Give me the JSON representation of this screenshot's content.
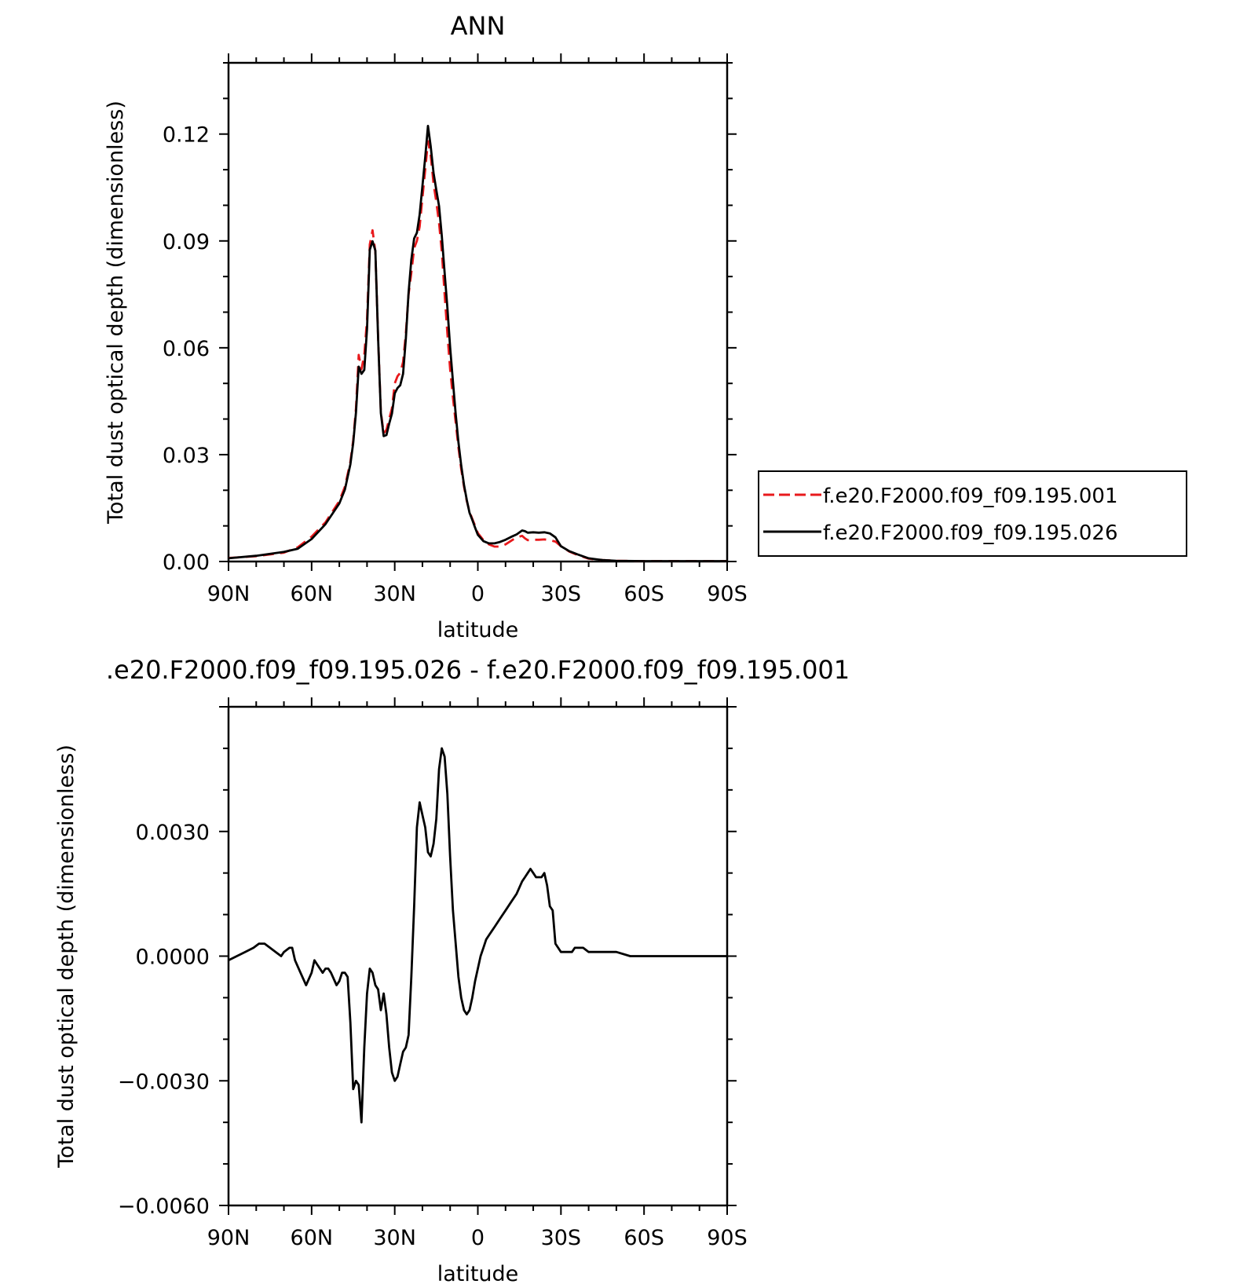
{
  "chart_data": [
    {
      "type": "line",
      "title": "ANN",
      "xlabel": "latitude",
      "ylabel": "Total dust optical depth (dimensionless)",
      "xlim": [
        90,
        -90
      ],
      "ylim": [
        0,
        0.14
      ],
      "x_axis_note": "latitude, positive = N, negative = S",
      "xticks": [
        90,
        60,
        30,
        0,
        -30,
        -60,
        -90
      ],
      "xtick_labels": [
        "90N",
        "60N",
        "30N",
        "0",
        "30S",
        "60S",
        "90S"
      ],
      "yticks": [
        0,
        0.03,
        0.06,
        0.09,
        0.12
      ],
      "ytick_labels": [
        "0.00",
        "0.03",
        "0.06",
        "0.09",
        "0.12"
      ],
      "legend": {
        "placement": "right"
      },
      "series": [
        {
          "name": "f.e20.F2000.f09_f09.195.001",
          "color": "#e8191c",
          "style": "dashed",
          "x": [
            90,
            80,
            70,
            65,
            60,
            55,
            50,
            48,
            46,
            45,
            44,
            43,
            42,
            41,
            40,
            39,
            38,
            37,
            36,
            35,
            34,
            33,
            32,
            31,
            30,
            29,
            28,
            27,
            26,
            25,
            24,
            23,
            22,
            21,
            20,
            19,
            18,
            17,
            16,
            15,
            14,
            13,
            12,
            11,
            10,
            9,
            8,
            7,
            6,
            5,
            4,
            3,
            2,
            1,
            0,
            -2,
            -4,
            -6,
            -8,
            -10,
            -12,
            -14,
            -16,
            -17,
            -18,
            -20,
            -22,
            -24,
            -26,
            -28,
            -30,
            -33,
            -36,
            -40,
            -45,
            -50,
            -60,
            -70,
            -80,
            -90
          ],
          "y": [
            0.001,
            0.0015,
            0.0025,
            0.004,
            0.007,
            0.011,
            0.017,
            0.021,
            0.028,
            0.034,
            0.043,
            0.058,
            0.054,
            0.058,
            0.068,
            0.089,
            0.093,
            0.087,
            0.063,
            0.042,
            0.036,
            0.037,
            0.04,
            0.043,
            0.05,
            0.052,
            0.053,
            0.056,
            0.064,
            0.075,
            0.081,
            0.088,
            0.09,
            0.094,
            0.102,
            0.11,
            0.118,
            0.114,
            0.106,
            0.101,
            0.095,
            0.087,
            0.075,
            0.064,
            0.054,
            0.046,
            0.039,
            0.032,
            0.026,
            0.021,
            0.017,
            0.014,
            0.012,
            0.01,
            0.008,
            0.006,
            0.0048,
            0.0042,
            0.0042,
            0.0048,
            0.0058,
            0.0068,
            0.0072,
            0.0065,
            0.006,
            0.0061,
            0.0061,
            0.0062,
            0.006,
            0.0056,
            0.0043,
            0.0028,
            0.0018,
            0.0008,
            0.0004,
            0.0002,
            0.0001,
            0.0001,
            0.0001,
            0.0001
          ]
        },
        {
          "name": "f.e20.F2000.f09_f09.195.026",
          "color": "#000000",
          "style": "solid",
          "x": [
            90,
            80,
            70,
            65,
            60,
            55,
            50,
            48,
            46,
            45,
            44,
            43,
            42,
            41,
            40,
            39,
            38,
            37,
            36,
            35,
            34,
            33,
            32,
            31,
            30,
            29,
            28,
            27,
            26,
            25,
            24,
            23,
            22,
            21,
            20,
            19,
            18,
            17,
            16,
            15,
            14,
            13,
            12,
            11,
            10,
            9,
            8,
            7,
            6,
            5,
            4,
            3,
            2,
            1,
            0,
            -2,
            -4,
            -6,
            -8,
            -10,
            -12,
            -14,
            -16,
            -17,
            -18,
            -20,
            -22,
            -24,
            -26,
            -28,
            -30,
            -33,
            -36,
            -40,
            -45,
            -50,
            -60,
            -70,
            -80,
            -90
          ],
          "y": [
            0.0009,
            0.0016,
            0.0027,
            0.0036,
            0.0063,
            0.0105,
            0.0163,
            0.0202,
            0.0273,
            0.0333,
            0.0418,
            0.0547,
            0.0527,
            0.0538,
            0.0653,
            0.0875,
            0.0899,
            0.0873,
            0.0627,
            0.0417,
            0.0352,
            0.0355,
            0.0387,
            0.0415,
            0.0472,
            0.0487,
            0.0495,
            0.0527,
            0.0625,
            0.0755,
            0.0847,
            0.0907,
            0.0923,
            0.0974,
            0.1053,
            0.1135,
            0.1223,
            0.1165,
            0.1091,
            0.1043,
            0.0998,
            0.0914,
            0.0811,
            0.0713,
            0.0602,
            0.0505,
            0.0414,
            0.0335,
            0.027,
            0.0215,
            0.0173,
            0.0137,
            0.0117,
            0.0095,
            0.0075,
            0.0057,
            0.0051,
            0.0051,
            0.0055,
            0.0061,
            0.0069,
            0.0076,
            0.0087,
            0.0085,
            0.0081,
            0.0082,
            0.0081,
            0.0082,
            0.0079,
            0.0068,
            0.0043,
            0.0029,
            0.002,
            0.0009,
            0.0004,
            0.0002,
            0.0001,
            0.0001,
            0.0001,
            0.0001
          ]
        }
      ]
    },
    {
      "type": "line",
      "title": ".e20.F2000.f09_f09.195.026 - f.e20.F2000.f09_f09.195.001",
      "xlabel": "latitude",
      "ylabel": "Total dust optical depth (dimensionless)",
      "xlim": [
        90,
        -90
      ],
      "ylim": [
        -0.006,
        0.006
      ],
      "x_axis_note": "latitude, positive = N, negative = S",
      "xticks": [
        90,
        60,
        30,
        0,
        -30,
        -60,
        -90
      ],
      "xtick_labels": [
        "90N",
        "60N",
        "30N",
        "0",
        "30S",
        "60S",
        "90S"
      ],
      "yticks": [
        -0.006,
        -0.003,
        0,
        0.003
      ],
      "ytick_labels": [
        "-0.0060",
        "-0.0030",
        "0.0000",
        "0.0030"
      ],
      "series": [
        {
          "name": "",
          "color": "#000000",
          "style": "solid",
          "x": [
            90,
            87,
            84,
            81,
            79,
            77,
            75,
            73,
            71,
            70,
            68,
            67,
            66,
            64,
            62,
            60,
            59,
            58,
            57,
            56,
            55,
            54,
            53,
            51,
            50,
            49,
            48,
            47,
            46,
            45,
            44,
            43,
            42,
            41,
            40,
            39,
            38,
            37,
            36,
            35,
            34,
            33,
            32,
            31,
            30,
            29,
            28,
            27,
            26,
            25,
            24,
            23,
            22,
            21,
            20,
            19,
            18,
            17,
            16,
            15,
            14,
            13,
            12,
            11,
            10,
            9,
            8,
            7,
            6,
            5,
            4,
            3,
            2,
            1,
            0,
            -1,
            -2,
            -3,
            -4,
            -5,
            -6,
            -8,
            -10,
            -12,
            -14,
            -16,
            -17,
            -18,
            -19,
            -20,
            -21,
            -22,
            -23,
            -24,
            -25,
            -26,
            -27,
            -28,
            -29,
            -30,
            -32,
            -34,
            -35,
            -36,
            -38,
            -40,
            -41,
            -42,
            -43,
            -44,
            -45,
            -50,
            -55,
            -60,
            -70,
            -80,
            -90
          ],
          "y": [
            -0.0001,
            0.0,
            0.0001,
            0.0002,
            0.0003,
            0.0003,
            0.0002,
            0.0001,
            0.0,
            0.0001,
            0.0002,
            0.0002,
            -0.0001,
            -0.0004,
            -0.0007,
            -0.0004,
            -0.0001,
            -0.0002,
            -0.0003,
            -0.0004,
            -0.0003,
            -0.0003,
            -0.0004,
            -0.0007,
            -0.0006,
            -0.0004,
            -0.0004,
            -0.0005,
            -0.0016,
            -0.0032,
            -0.003,
            -0.0031,
            -0.004,
            -0.0022,
            -0.0009,
            -0.0003,
            -0.0004,
            -0.0007,
            -0.0008,
            -0.0013,
            -0.0009,
            -0.0014,
            -0.0022,
            -0.0028,
            -0.003,
            -0.0029,
            -0.0026,
            -0.0023,
            -0.0022,
            -0.0019,
            -0.0005,
            0.0012,
            0.0031,
            0.0037,
            0.0034,
            0.0031,
            0.0025,
            0.0024,
            0.0027,
            0.0033,
            0.0045,
            0.005,
            0.0048,
            0.0039,
            0.0024,
            0.0011,
            0.0003,
            -0.0005,
            -0.001,
            -0.0013,
            -0.0014,
            -0.0013,
            -0.001,
            -0.0006,
            -0.0003,
            0.0,
            0.0002,
            0.0004,
            0.0005,
            0.0006,
            0.0007,
            0.0009,
            0.0011,
            0.0013,
            0.0015,
            0.0018,
            0.0019,
            0.002,
            0.0021,
            0.002,
            0.0019,
            0.0019,
            0.0019,
            0.002,
            0.0017,
            0.0012,
            0.0011,
            0.0003,
            0.0002,
            0.0001,
            0.0001,
            0.0001,
            0.0002,
            0.0002,
            0.0002,
            0.0001,
            0.0001,
            0.0001,
            0.0001,
            0.0001,
            0.0001,
            0.0001,
            0.0,
            0.0,
            0.0,
            0.0,
            0.0
          ]
        }
      ]
    }
  ]
}
